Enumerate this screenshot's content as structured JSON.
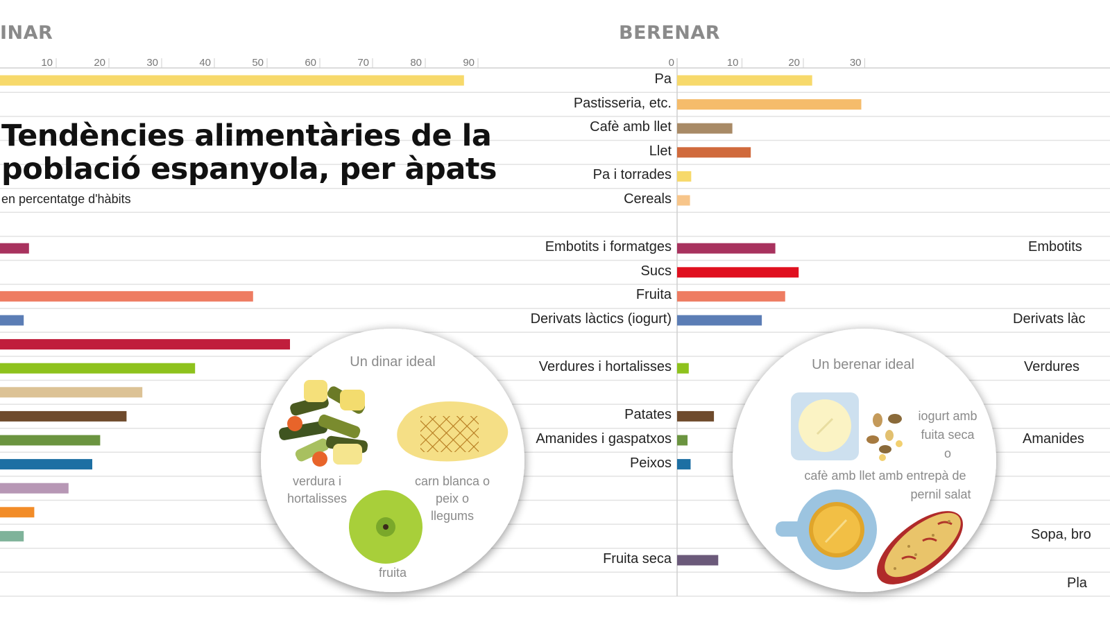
{
  "titles": {
    "left_panel": "INAR",
    "right_panel": "BERENAR",
    "main_title_line1": "Tendències alimentàries de la",
    "main_title_line2": "població espanyola, per àpats",
    "subtitle": "en percentatge d'hàbits"
  },
  "chart_data": [
    {
      "type": "bar",
      "panel": "INAR",
      "orientation": "horizontal",
      "x_ticks": [
        "10",
        "20",
        "30",
        "40",
        "50",
        "60",
        "70",
        "80",
        "90"
      ],
      "xlim": [
        0,
        95
      ],
      "bars": [
        {
          "row": 0,
          "value": 88,
          "color": "#f7d96b"
        },
        {
          "row": 7,
          "value": 5.5,
          "color": "#a8325e"
        },
        {
          "row": 9,
          "value": 48,
          "color": "#ee7c62"
        },
        {
          "row": 10,
          "value": 4.5,
          "color": "#5b7db5"
        },
        {
          "row": 11,
          "value": 55,
          "color": "#c01e3c"
        },
        {
          "row": 12,
          "value": 37,
          "color": "#8ec21d"
        },
        {
          "row": 13,
          "value": 27,
          "color": "#dcc295"
        },
        {
          "row": 14,
          "value": 24,
          "color": "#6e4a2c"
        },
        {
          "row": 15,
          "value": 19,
          "color": "#6b9440"
        },
        {
          "row": 16,
          "value": 17.5,
          "color": "#1d6fa3"
        },
        {
          "row": 17,
          "value": 13,
          "color": "#b797b5"
        },
        {
          "row": 18,
          "value": 6.5,
          "color": "#f28c28"
        },
        {
          "row": 19,
          "value": 4.5,
          "color": "#7fb39a"
        }
      ]
    },
    {
      "type": "bar",
      "panel": "BERENAR",
      "orientation": "horizontal",
      "x_ticks": [
        "0",
        "10",
        "20",
        "30"
      ],
      "xlim": [
        0,
        35
      ],
      "rows": [
        {
          "row": 0,
          "label": "Pa",
          "value": 22,
          "color": "#f7d96b"
        },
        {
          "row": 1,
          "label": "Pastisseria, etc.",
          "value": 30,
          "color": "#f5bc6b"
        },
        {
          "row": 2,
          "label": "Cafè amb llet",
          "value": 9,
          "color": "#a88a66"
        },
        {
          "row": 3,
          "label": "Llet",
          "value": 12,
          "color": "#d06a3c"
        },
        {
          "row": 4,
          "label": "Pa i torrades",
          "value": 2.3,
          "color": "#f7d96b"
        },
        {
          "row": 5,
          "label": "Cereals",
          "value": 2.1,
          "color": "#f7c58a"
        },
        {
          "row": 7,
          "label": "Embotits i formatges",
          "value": 16,
          "color": "#a8325e"
        },
        {
          "row": 8,
          "label": "Sucs",
          "value": 19.8,
          "color": "#e0101f"
        },
        {
          "row": 9,
          "label": "Fruita",
          "value": 17.6,
          "color": "#ee7c62"
        },
        {
          "row": 10,
          "label": "Derivats làctics (iogurt)",
          "value": 13.8,
          "color": "#5b7db5"
        },
        {
          "row": 12,
          "label": "Verdures i hortalisses",
          "value": 1.9,
          "color": "#8ec21d"
        },
        {
          "row": 14,
          "label": "Patates",
          "value": 6,
          "color": "#6e4a2c"
        },
        {
          "row": 15,
          "label": "Amanides i gaspatxos",
          "value": 1.7,
          "color": "#6b9440"
        },
        {
          "row": 16,
          "label": "Peixos",
          "value": 2.2,
          "color": "#1d6fa3"
        },
        {
          "row": 20,
          "label": "Fruita seca",
          "value": 6.7,
          "color": "#6b5a7a"
        }
      ]
    }
  ],
  "right_edge_labels": [
    {
      "row": 7,
      "text": "Embotits"
    },
    {
      "row": 10,
      "text": "Derivats làc"
    },
    {
      "row": 12,
      "text": "Verdures"
    },
    {
      "row": 15,
      "text": "Amanides"
    },
    {
      "row": 19,
      "text": "Sopa, bro"
    },
    {
      "row": 21,
      "text": "Pla"
    }
  ],
  "illustrations": {
    "dinar": {
      "title": "Un dinar ideal",
      "veg_line1": "verdura i",
      "veg_line2": "hortalisses",
      "meat_line1": "carn blanca o",
      "meat_line2": "peix o",
      "meat_line3": "llegums",
      "fruit": "fruita",
      "icons": [
        "vegetables-icon",
        "meat-cutlet-icon",
        "apple-icon"
      ]
    },
    "berenar": {
      "title": "Un berenar ideal",
      "yog_line1": "iogurt amb",
      "yog_line2": "fuita seca",
      "or": "o",
      "cafe_line1": "cafè amb llet amb entrepà de",
      "cafe_line2": "pernil salat",
      "icons": [
        "yogurt-icon",
        "nuts-icon",
        "coffee-cup-icon",
        "sandwich-icon"
      ]
    }
  }
}
